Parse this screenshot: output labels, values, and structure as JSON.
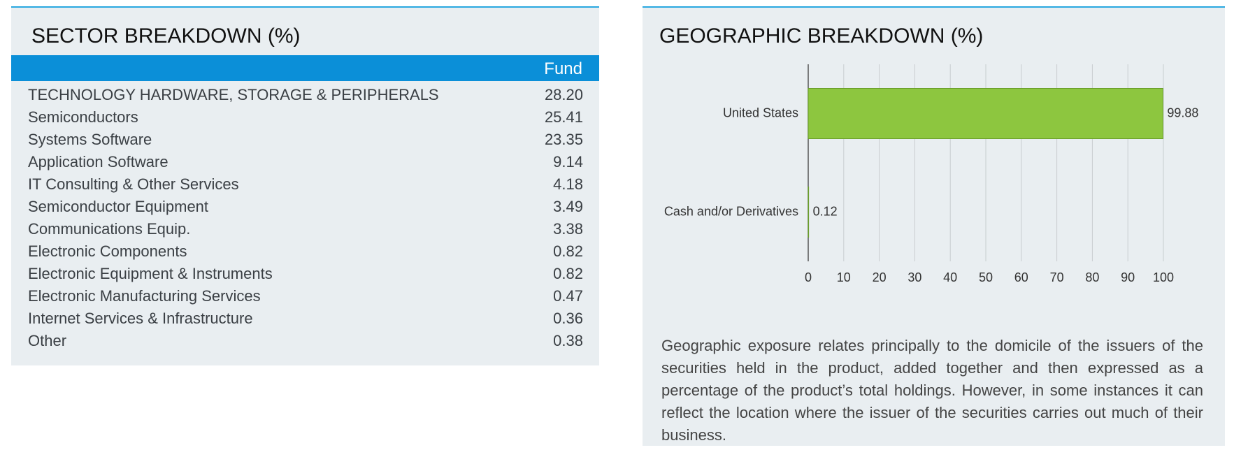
{
  "sector": {
    "title": "SECTOR BREAKDOWN (%)",
    "header": "Fund",
    "rows": [
      [
        "TECHNOLOGY HARDWARE, STORAGE & PERIPHERALS",
        "28.20"
      ],
      [
        "Semiconductors",
        "25.41"
      ],
      [
        "Systems Software",
        "23.35"
      ],
      [
        "Application Software",
        "9.14"
      ],
      [
        "IT Consulting & Other Services",
        "4.18"
      ],
      [
        "Semiconductor Equipment",
        "3.49"
      ],
      [
        "Communications Equip.",
        "3.38"
      ],
      [
        "Electronic Components",
        "0.82"
      ],
      [
        "Electronic Equipment & Instruments",
        "0.82"
      ],
      [
        "Electronic Manufacturing Services",
        "0.47"
      ],
      [
        "Internet Services & Infrastructure",
        "0.36"
      ],
      [
        "Other",
        "0.38"
      ]
    ]
  },
  "geo_title": "GEOGRAPHIC BREAKDOWN (%)",
  "chart_data": {
    "type": "bar",
    "orientation": "horizontal",
    "categories": [
      "United States",
      "Cash and/or Derivatives"
    ],
    "values": [
      99.88,
      0.12
    ],
    "color": "#8dc63f",
    "xlim": [
      0,
      100
    ],
    "xticks": [
      0,
      10,
      20,
      30,
      40,
      50,
      60,
      70,
      80,
      90,
      100
    ],
    "grid": true
  },
  "note": "Geographic exposure relates principally to the domicile of the issuers of the securities held in the product, added together and then expressed as a percentage of the product’s total holdings. However, in some instances it can reflect the location where the issuer of the securities carries out much of their business."
}
